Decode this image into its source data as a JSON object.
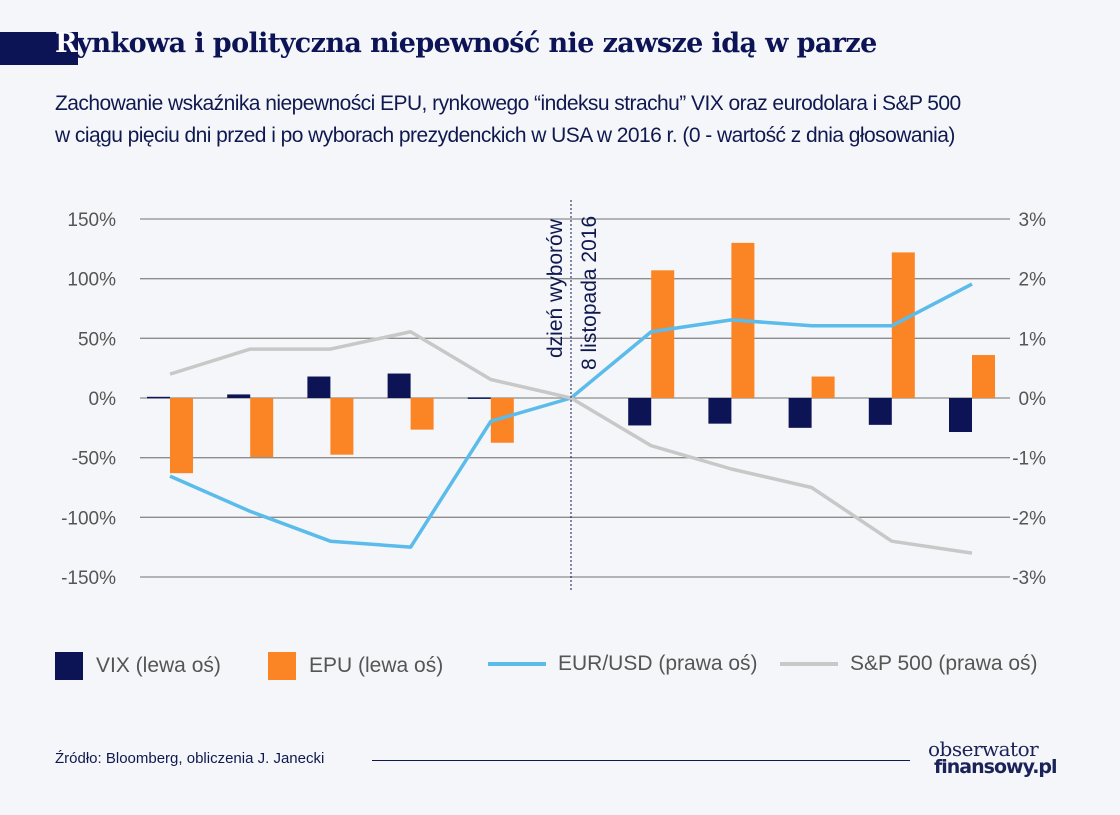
{
  "title_first_letter": "R",
  "title_rest": "ynkowa i polityczna niepewność nie zawsze idą w parze",
  "subtitle_line1": "Zachowanie wskaźnika niepewności EPU, rynkowego “indeksu strachu” VIX oraz eurodolara i S&P 500",
  "subtitle_line2": "w ciągu pięciu dni przed i po wyborach prezydenckich w USA w 2016 r. (0 - wartość z dnia głosowania)",
  "source": "Źródło: Bloomberg, obliczenia J. Janecki",
  "logo": {
    "line1": "obserwator",
    "line2": "finansowy.pl"
  },
  "chart_data": {
    "type": "bar+line",
    "x": [
      -5,
      -4,
      -3,
      -2,
      -1,
      0,
      1,
      2,
      3,
      4,
      5
    ],
    "left_axis": {
      "ylim": [
        -150,
        150
      ],
      "ticks": [
        "150%",
        "100%",
        "50%",
        "0%",
        "-50%",
        "-100%",
        "-150%"
      ],
      "tick_values": [
        150,
        100,
        50,
        0,
        -50,
        -100,
        -150
      ]
    },
    "right_axis": {
      "ylim": [
        -3,
        3
      ],
      "ticks": [
        "3%",
        "2%",
        "1%",
        "0%",
        "-1%",
        "-2%",
        "-3%"
      ],
      "tick_values": [
        3,
        2,
        1,
        0,
        -1,
        -2,
        -3
      ]
    },
    "annotation": {
      "line1": "dzień wyborów",
      "line2": "8 listopada 2016",
      "x": 0
    },
    "grid": true,
    "legend_position": "bottom",
    "series": [
      {
        "name": "VIX (lewa oś)",
        "type": "bar",
        "axis": "left",
        "color": "#0c1456",
        "values": [
          1,
          3,
          18,
          20.5,
          0.5,
          null,
          -23,
          -21.5,
          -25,
          -22.5,
          -28.5
        ]
      },
      {
        "name": "EPU (lewa oś)",
        "type": "bar",
        "axis": "left",
        "color": "#fb8424",
        "values": [
          -63,
          -49.5,
          -47.5,
          -26.5,
          -37.5,
          null,
          107,
          130,
          18,
          122,
          36
        ]
      },
      {
        "name": "EUR/USD (prawa oś)",
        "type": "line",
        "axis": "right",
        "color": "#5bbbea",
        "values": [
          -1.31,
          -1.9,
          -2.4,
          -2.5,
          -0.39,
          0,
          1.11,
          1.31,
          1.21,
          1.21,
          1.91
        ]
      },
      {
        "name": "S&P 500 (prawa oś)",
        "type": "line",
        "axis": "right",
        "color": "#c8c8c8",
        "values": [
          0.4,
          0.82,
          0.82,
          1.11,
          0.31,
          0,
          -0.8,
          -1.19,
          -1.5,
          -2.4,
          -2.6
        ]
      }
    ]
  }
}
